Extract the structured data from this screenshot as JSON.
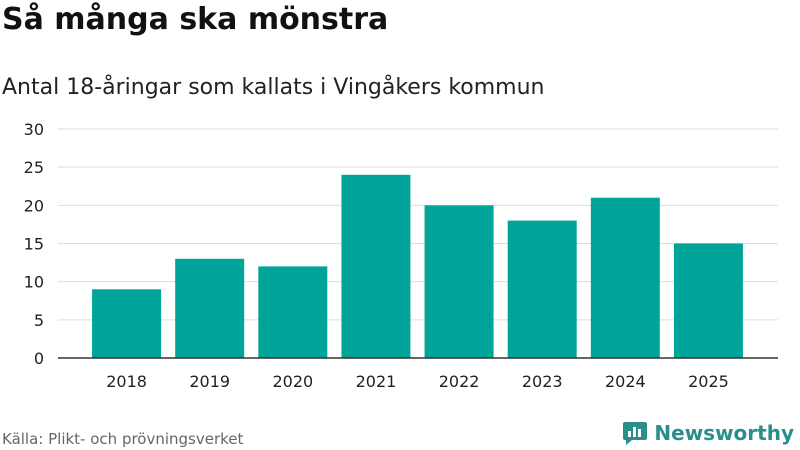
{
  "header": {
    "title": "Så många ska mönstra",
    "subtitle": "Antal 18-åringar som kallats i Vingåkers kommun"
  },
  "footer": {
    "source": "Källa: Plikt- och prövningsverket",
    "brand": "Newsworthy",
    "brand_icon": "bar-chart-speech-bubble-icon"
  },
  "colors": {
    "bar": "#00a499",
    "grid": "#dddddd",
    "axis": "#333333",
    "brand": "#2a8f8a"
  },
  "chart_data": {
    "type": "bar",
    "title": "Så många ska mönstra",
    "subtitle": "Antal 18-åringar som kallats i Vingåkers kommun",
    "xlabel": "",
    "ylabel": "",
    "categories": [
      "2018",
      "2019",
      "2020",
      "2021",
      "2022",
      "2023",
      "2024",
      "2025"
    ],
    "values": [
      9,
      13,
      12,
      24,
      20,
      18,
      21,
      15
    ],
    "ylim": [
      0,
      30
    ],
    "yticks": [
      0,
      5,
      10,
      15,
      20,
      25,
      30
    ],
    "grid": true,
    "legend": "none"
  }
}
